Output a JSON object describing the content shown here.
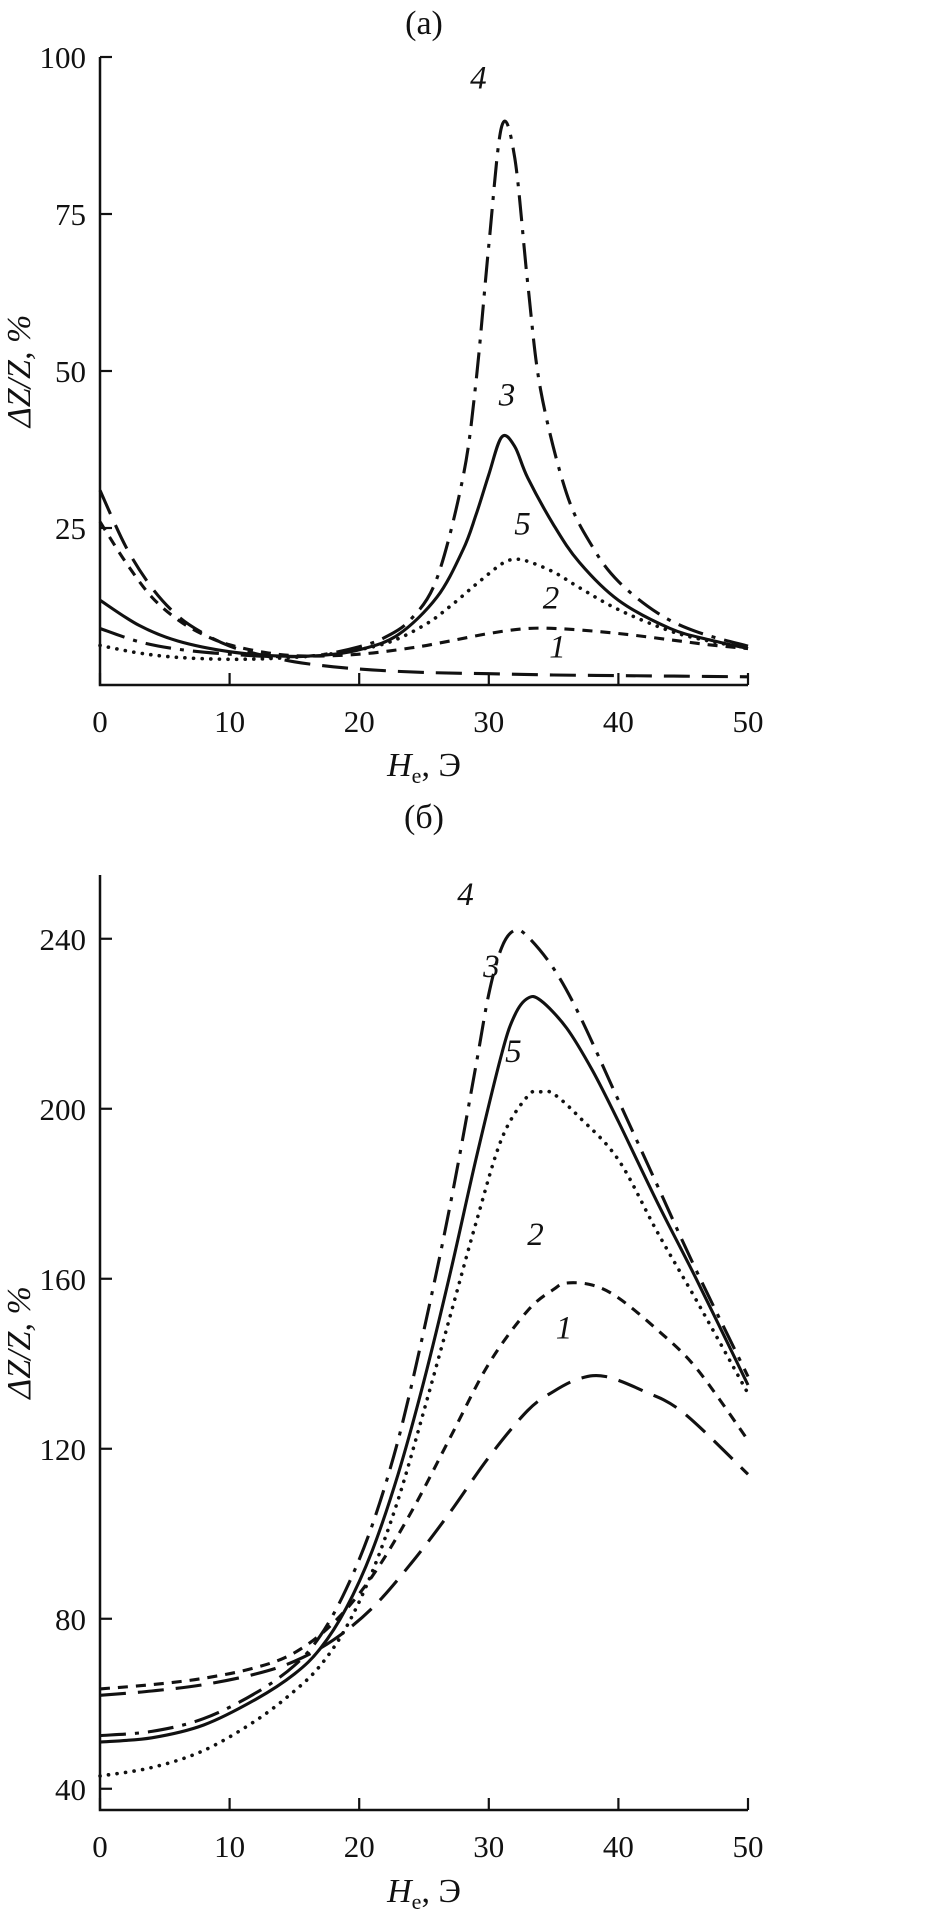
{
  "chart_data": [
    {
      "panel": "a",
      "type": "line",
      "title": "(а)",
      "ylabel": "ΔZ/Z, %",
      "xlabel": "He, Э",
      "xlabel_parts": {
        "main": "H",
        "sub": "e",
        "rest": ", Э"
      },
      "xlim": [
        0,
        50
      ],
      "ylim": [
        0,
        100
      ],
      "xticks": [
        0,
        10,
        20,
        30,
        40,
        50
      ],
      "yticks": [
        25,
        50,
        75,
        100
      ],
      "grid": false,
      "legend_position": "inline-curve-numbers",
      "line_color": "#111111",
      "series": [
        {
          "name": "1",
          "linestyle": "longdash",
          "label_at": [
            35.3,
            4.4
          ],
          "x": [
            0,
            2,
            4,
            6,
            8,
            10,
            12,
            15,
            18,
            21,
            25,
            30,
            35,
            40,
            45,
            50
          ],
          "y": [
            31,
            22,
            15.5,
            11,
            8.2,
            6.2,
            5,
            3.7,
            2.9,
            2.4,
            2,
            1.8,
            1.6,
            1.5,
            1.4,
            1.3
          ]
        },
        {
          "name": "2",
          "linestyle": "shortdash",
          "label_at": [
            34.8,
            12.2
          ],
          "x": [
            0,
            2,
            4,
            6,
            8,
            10,
            13,
            16,
            20,
            24,
            27,
            30,
            33,
            36,
            40,
            44,
            47,
            50
          ],
          "y": [
            26,
            19.5,
            14,
            10.4,
            8,
            6.4,
            5.1,
            4.6,
            4.9,
            5.9,
            7,
            8.2,
            9,
            8.9,
            8.2,
            7.2,
            6.4,
            5.8
          ]
        },
        {
          "name": "5",
          "linestyle": "dotted",
          "label_at": [
            32.6,
            24
          ],
          "x": [
            0,
            3,
            6,
            10,
            14,
            18,
            22,
            25,
            27,
            29,
            31,
            32,
            33,
            35,
            37,
            40,
            44,
            47,
            50
          ],
          "y": [
            6.3,
            5.1,
            4.4,
            4.1,
            4.3,
            5,
            6.6,
            9.5,
            12.5,
            16,
            19.3,
            20,
            19.7,
            18,
            15.5,
            12,
            8.6,
            7,
            5.9
          ]
        },
        {
          "name": "3",
          "linestyle": "solid",
          "label_at": [
            31.4,
            44.5
          ],
          "x": [
            0,
            3,
            6,
            10,
            14,
            17,
            20,
            23,
            26,
            28,
            29,
            30,
            31,
            32,
            33,
            35,
            37,
            40,
            44,
            47,
            50
          ],
          "y": [
            13.5,
            9.5,
            7,
            5.3,
            4.6,
            4.7,
            5.6,
            8,
            14,
            21.5,
            27,
            33.5,
            39.5,
            38,
            33,
            25.5,
            19.5,
            13.5,
            9,
            7.2,
            5.8
          ]
        },
        {
          "name": "4",
          "linestyle": "dashdot",
          "label_at": [
            29.2,
            95
          ],
          "x": [
            0,
            3,
            6,
            10,
            14,
            17,
            20,
            22,
            24,
            26,
            28,
            29,
            30,
            31,
            32,
            33,
            34,
            36,
            38,
            40,
            43,
            46,
            50
          ],
          "y": [
            9,
            6.9,
            5.7,
            4.9,
            4.5,
            4.8,
            6.1,
            7.6,
            10.5,
            17,
            33,
            48,
            70,
            89,
            84,
            64,
            47,
            30.5,
            22,
            16.5,
            11.5,
            8.5,
            6.2
          ]
        }
      ]
    },
    {
      "panel": "б",
      "type": "line",
      "title": "(б)",
      "ylabel": "ΔZ/Z, %",
      "xlabel": "He, Э",
      "xlabel_parts": {
        "main": "H",
        "sub": "e",
        "rest": ", Э"
      },
      "xlim": [
        0,
        50
      ],
      "ylim": [
        35,
        255
      ],
      "xticks": [
        0,
        10,
        20,
        30,
        40,
        50
      ],
      "yticks": [
        40,
        80,
        120,
        160,
        200,
        240
      ],
      "grid": false,
      "legend_position": "inline-curve-numbers",
      "line_color": "#111111",
      "series": [
        {
          "name": "1",
          "linestyle": "longdash",
          "label_at": [
            35.8,
            146
          ],
          "x": [
            0,
            4,
            8,
            12,
            15,
            18,
            21,
            24,
            27,
            30,
            33,
            35,
            37,
            39,
            42,
            45,
            50
          ],
          "y": [
            62,
            63,
            64.5,
            67,
            70,
            75,
            82.5,
            93,
            105,
            118,
            129,
            133.5,
            136.5,
            137,
            133.5,
            128.5,
            114
          ]
        },
        {
          "name": "2",
          "linestyle": "shortdash",
          "label_at": [
            33.6,
            168
          ],
          "x": [
            0,
            4,
            8,
            12,
            15,
            18,
            21,
            24,
            27,
            30,
            33,
            35,
            36,
            38,
            40,
            43,
            46,
            50
          ],
          "y": [
            63.5,
            64.5,
            66,
            68.5,
            72,
            79,
            90,
            105,
            122.5,
            140,
            152.5,
            157.5,
            159,
            158.5,
            155.5,
            148,
            139,
            122
          ]
        },
        {
          "name": "5",
          "linestyle": "dotted",
          "label_at": [
            31.9,
            211
          ],
          "x": [
            0,
            4,
            8,
            12,
            15,
            17,
            19,
            21,
            23,
            25,
            27,
            29,
            31,
            33,
            34,
            35,
            37,
            40,
            43,
            46,
            50
          ],
          "y": [
            43,
            45,
            49,
            56,
            63,
            69,
            78,
            91,
            108,
            129,
            151,
            173,
            193,
            203,
            204,
            203.5,
            198,
            188,
            171,
            155,
            133
          ]
        },
        {
          "name": "3",
          "linestyle": "solid",
          "label_at": [
            30.2,
            231
          ],
          "x": [
            0,
            4,
            8,
            12,
            15,
            17,
            19,
            21,
            23,
            25,
            27,
            29,
            31,
            32,
            33,
            34,
            36,
            38,
            40,
            43,
            46,
            50
          ],
          "y": [
            51,
            52,
            55,
            61,
            67,
            73,
            82.5,
            96,
            114,
            136,
            161,
            188,
            213,
            222,
            226,
            225.5,
            219,
            209,
            197,
            178,
            160,
            135
          ]
        },
        {
          "name": "4",
          "linestyle": "dashdot",
          "label_at": [
            28.2,
            248
          ],
          "x": [
            0,
            4,
            8,
            12,
            15,
            17,
            19,
            21,
            23,
            25,
            27,
            29,
            30,
            31,
            32,
            33,
            35,
            37,
            40,
            43,
            46,
            50
          ],
          "y": [
            52.5,
            53.5,
            56.5,
            62.5,
            69,
            76,
            87,
            102,
            122,
            148,
            177,
            210,
            227,
            238,
            242,
            240.5,
            233,
            222,
            202,
            182,
            162,
            137
          ]
        }
      ]
    }
  ]
}
